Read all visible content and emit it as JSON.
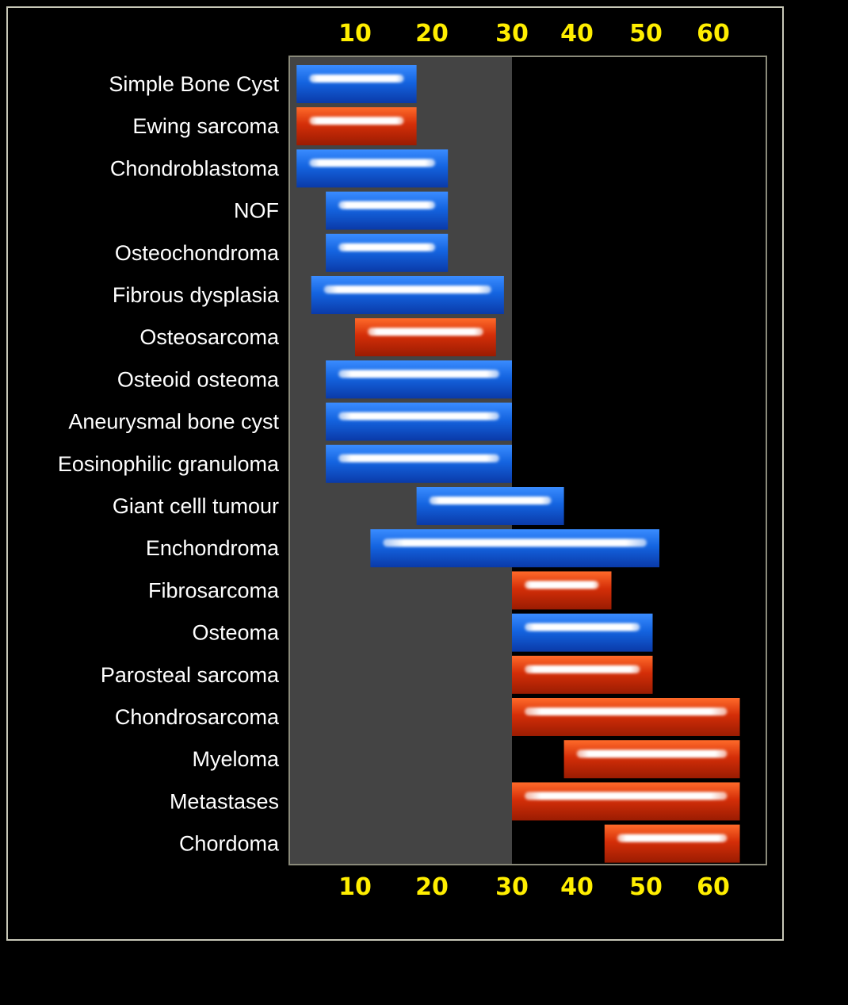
{
  "chart_data": {
    "type": "bar",
    "orientation": "horizontal-range",
    "title": "",
    "xlabel": "",
    "ylabel": "",
    "x_ticks": [
      10,
      20,
      30,
      40,
      50,
      60
    ],
    "x_tick_positions_on_scale": [
      [
        10,
        10
      ],
      [
        20,
        20
      ],
      [
        30,
        30
      ],
      [
        40,
        40
      ],
      [
        50,
        50
      ],
      [
        60,
        60
      ]
    ],
    "xlim": [
      1,
      70
    ],
    "highlight_region": {
      "from": 1,
      "to": 30,
      "color": "#444444"
    },
    "colors": {
      "benign": "#1464e0",
      "malignant": "#d42e08",
      "tick": "#ffee00",
      "label": "#ffffff",
      "frame": "#c8c8b8"
    },
    "categories": [
      "Simple Bone Cyst",
      "Ewing sarcoma",
      "Chondroblastoma",
      "NOF",
      "Osteochondroma",
      "Fibrous dysplasia",
      "Osteosarcoma",
      "Osteoid osteoma",
      "Aneurysmal bone cyst",
      "Eosinophilic granuloma",
      "Giant celll tumour",
      "Enchondroma",
      "Fibrosarcoma",
      "Osteoma",
      "Parosteal sarcoma",
      "Chondrosarcoma",
      "Myeloma",
      "Metastases",
      "Chordoma"
    ],
    "ranges": [
      [
        2,
        18
      ],
      [
        2,
        18
      ],
      [
        2,
        22
      ],
      [
        6,
        22
      ],
      [
        6,
        22
      ],
      [
        4,
        29
      ],
      [
        10,
        28
      ],
      [
        6,
        30
      ],
      [
        6,
        30
      ],
      [
        6,
        30
      ],
      [
        18,
        38
      ],
      [
        12,
        52
      ],
      [
        30,
        45
      ],
      [
        30,
        51
      ],
      [
        30,
        51
      ],
      [
        30,
        65
      ],
      [
        38,
        65
      ],
      [
        30,
        65
      ],
      [
        44,
        65
      ]
    ],
    "kinds": [
      "benign",
      "malignant",
      "benign",
      "benign",
      "benign",
      "benign",
      "malignant",
      "benign",
      "benign",
      "benign",
      "benign",
      "benign",
      "malignant",
      "benign",
      "malignant",
      "malignant",
      "malignant",
      "malignant",
      "malignant"
    ]
  }
}
